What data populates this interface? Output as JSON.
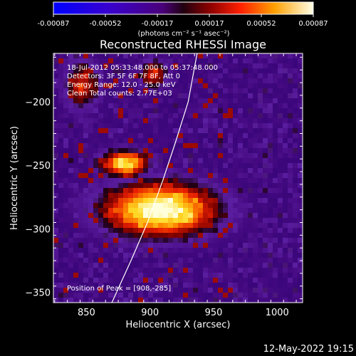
{
  "colorbar": {
    "tick_labels": [
      "-0.00087",
      "-0.00052",
      "-0.00017",
      "0.00017",
      "0.00052",
      "0.00087"
    ],
    "unit_label": "(photons cm⁻² s⁻¹ asec⁻²)",
    "range": [
      -0.00087,
      0.00087
    ]
  },
  "chart_data": {
    "type": "heatmap",
    "title": "Reconstructed RHESSI Image",
    "xlabel": "Heliocentric X (arcsec)",
    "ylabel": "Heliocentric Y (arcsec)",
    "xlim": [
      824,
      1020
    ],
    "ylim": [
      -358,
      -162
    ],
    "x_ticks": [
      850,
      900,
      950,
      1000
    ],
    "y_ticks": [
      -350,
      -300,
      -250,
      -200
    ],
    "x_tick_labels": [
      "850",
      "900",
      "950",
      "1000"
    ],
    "y_tick_labels": [
      "−350",
      "−300",
      "−250",
      "−200"
    ],
    "peak": {
      "x": 908,
      "y": -285
    },
    "limb_line": [
      [
        870,
        -358
      ],
      [
        885,
        -325
      ],
      [
        898,
        -295
      ],
      [
        910,
        -262
      ],
      [
        920,
        -232
      ],
      [
        930,
        -200
      ],
      [
        937,
        -162
      ]
    ],
    "annotations": [
      "18-Jul-2012 05:33:48.000 to 05:37:48.000",
      "Detectors: 3F 5F 6F 7F 8F, Att 0",
      "Energy Range: 12.0 - 25.0 keV",
      "Clean     Total counts: 2.77E+03"
    ],
    "peak_label": "Position of Peak = [908,-285]"
  },
  "timestamp": "12-May-2022 19:15"
}
